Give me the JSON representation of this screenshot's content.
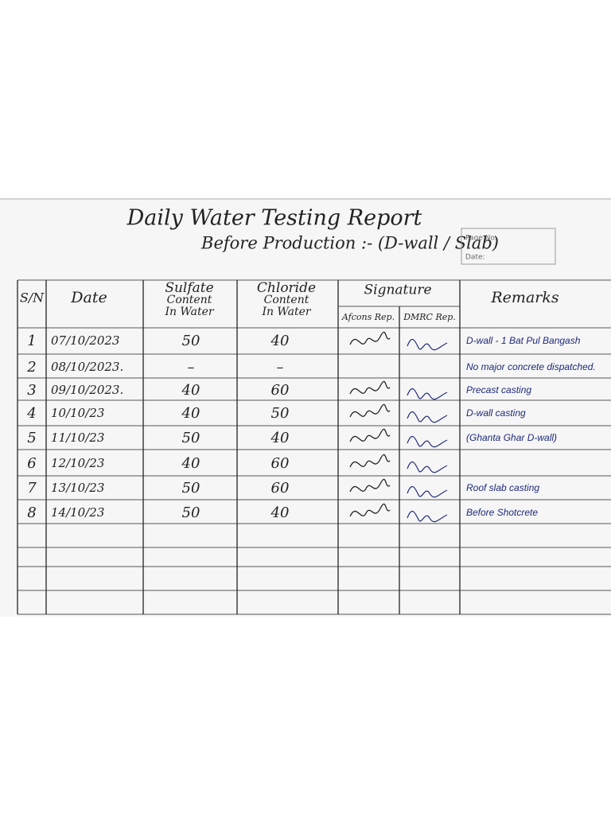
{
  "header": {
    "title": "Daily Water Testing Report",
    "subtitle": "Before Production :- (D-wall / Slab)",
    "stamp_page": "Page No.",
    "stamp_date": "Date:"
  },
  "table": {
    "columns": [
      "S/N",
      "Date",
      "Sulfate Content In Water",
      "Chloride Content In Water",
      "Signature",
      "Remarks"
    ],
    "signature_columns": [
      "Afcons Rep.",
      "DMRC Rep."
    ],
    "rows": [
      {
        "sn": "1",
        "date": "07/10/2023",
        "sulfate": 50,
        "chloride": 40,
        "signed": true,
        "remarks": "D-wall - 1 Bat Pul Bangash"
      },
      {
        "sn": "2",
        "date": "08/10/2023.",
        "sulfate": "–",
        "chloride": "–",
        "signed": false,
        "remarks": "No major concrete dispatched."
      },
      {
        "sn": "3",
        "date": "09/10/2023.",
        "sulfate": 40,
        "chloride": 60,
        "signed": true,
        "remarks": "Precast casting"
      },
      {
        "sn": "4",
        "date": "10/10/23",
        "sulfate": 40,
        "chloride": 50,
        "signed": true,
        "remarks": "D-wall casting"
      },
      {
        "sn": "5",
        "date": "11/10/23",
        "sulfate": 50,
        "chloride": 40,
        "signed": true,
        "remarks": "(Ghanta Ghar D-wall)"
      },
      {
        "sn": "6",
        "date": "12/10/23",
        "sulfate": 40,
        "chloride": 60,
        "signed": true
      },
      {
        "sn": "7",
        "date": "13/10/23",
        "sulfate": 50,
        "chloride": 60,
        "signed": true,
        "remarks": "Roof slab casting"
      },
      {
        "sn": "8",
        "date": "14/10/23",
        "sulfate": 50,
        "chloride": 40,
        "signed": true,
        "remarks": "Before Shotcrete"
      }
    ]
  }
}
